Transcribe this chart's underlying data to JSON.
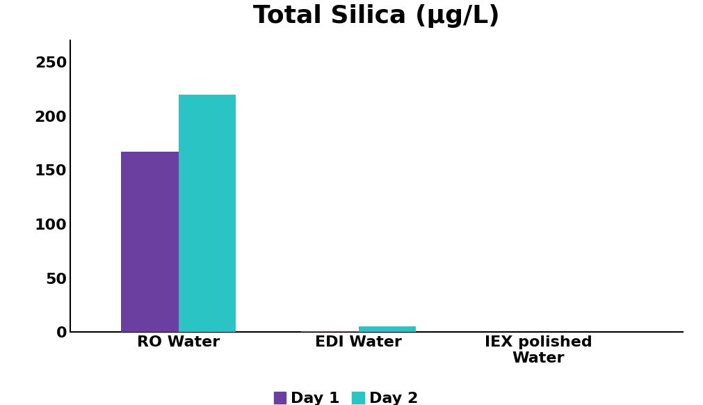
{
  "title": "Total Silica (μg/L)",
  "categories": [
    "RO Water",
    "EDI Water",
    "IEX polished\nWater"
  ],
  "day1_values": [
    167,
    1.0,
    0
  ],
  "day2_values": [
    220,
    5.0,
    0
  ],
  "day1_color": "#6B3FA0",
  "day2_color": "#2BC4C4",
  "ylim": [
    0,
    270
  ],
  "yticks": [
    0,
    50,
    100,
    150,
    200,
    250
  ],
  "bar_width": 0.32,
  "title_fontsize": 26,
  "tick_fontsize": 16,
  "legend_fontsize": 16,
  "background_color": "#ffffff"
}
